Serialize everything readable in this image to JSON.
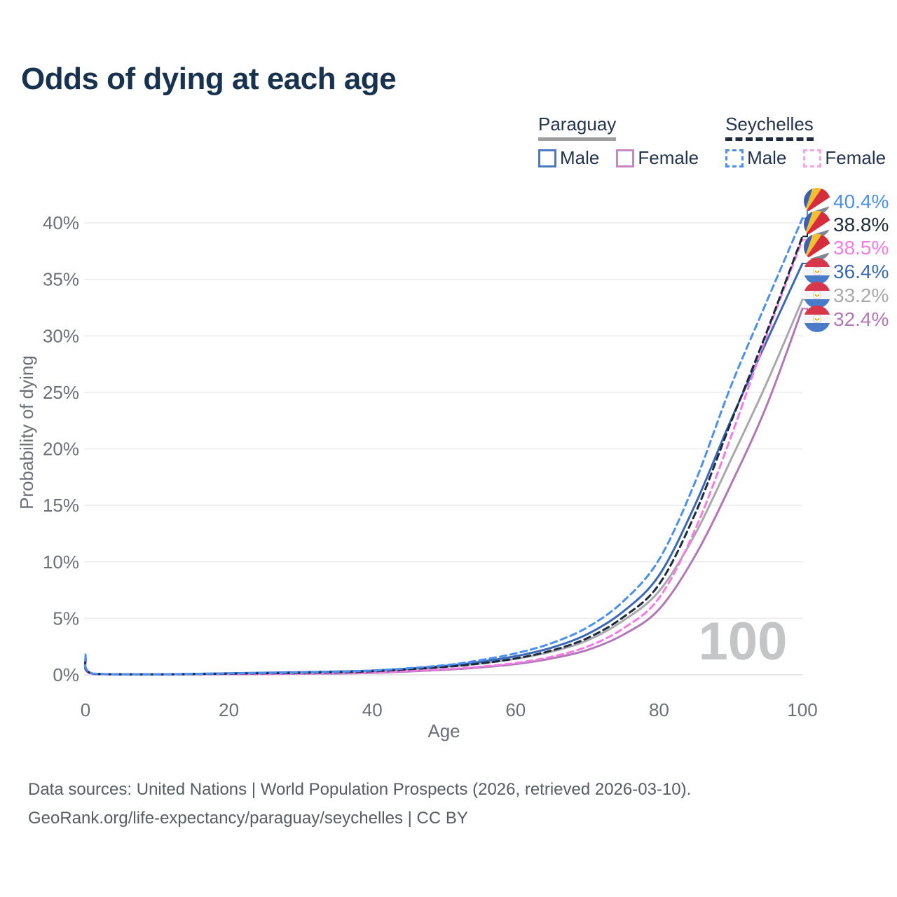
{
  "title": "Odds of dying at each age",
  "legend": {
    "groups": [
      {
        "name": "Paraguay",
        "underline_style": "solid",
        "underline_color": "#9e9e9e",
        "items": [
          {
            "label": "Male",
            "color": "#4b79bd",
            "style": "solid"
          },
          {
            "label": "Female",
            "color": "#c489c6",
            "style": "solid"
          }
        ]
      },
      {
        "name": "Seychelles",
        "underline_style": "dashed",
        "underline_color": "#1e2b3c",
        "items": [
          {
            "label": "Male",
            "color": "#4a90f0",
            "style": "dashed"
          },
          {
            "label": "Female",
            "color": "#f9a4ec",
            "style": "dashed"
          }
        ]
      }
    ]
  },
  "chart_data": {
    "type": "line",
    "title": "Odds of dying at each age",
    "xlabel": "Age",
    "ylabel": "Probability of dying",
    "xlim": [
      0,
      100
    ],
    "ylim_percent": [
      0,
      42
    ],
    "x_ticks": [
      0,
      20,
      40,
      60,
      80,
      100
    ],
    "y_tick_values": [
      0,
      5,
      10,
      15,
      20,
      25,
      30,
      35,
      40
    ],
    "y_tick_labels": [
      "0%",
      "5%",
      "10%",
      "15%",
      "20%",
      "25%",
      "30%",
      "35%",
      "40%"
    ],
    "grid": true,
    "legend_position": "top-right",
    "watermark": "100",
    "ages": [
      0,
      1,
      10,
      20,
      30,
      40,
      50,
      55,
      60,
      65,
      70,
      75,
      80,
      85,
      90,
      95,
      100
    ],
    "series": [
      {
        "id": "seychelles-male",
        "country": "Seychelles",
        "sex": "Male",
        "style": "dashed",
        "color": "#4a90f0",
        "flag": "seychelles",
        "end_label": "40.4%",
        "label_color": "#4a90f0",
        "values_percent": [
          1.8,
          0.12,
          0.05,
          0.13,
          0.22,
          0.38,
          0.85,
          1.3,
          1.9,
          2.8,
          4.2,
          6.5,
          10.2,
          17.0,
          25.5,
          33.0,
          40.4
        ]
      },
      {
        "id": "seychelles-both",
        "country": "Seychelles",
        "sex": "Both",
        "style": "dashed",
        "color": "#1e2b3c",
        "flag": "seychelles",
        "end_label": "38.8%",
        "label_color": "#1e2b3c",
        "values_percent": [
          1.5,
          0.1,
          0.04,
          0.11,
          0.18,
          0.32,
          0.7,
          1.0,
          1.45,
          2.15,
          3.25,
          5.1,
          8.0,
          14.2,
          22.3,
          30.3,
          38.8
        ]
      },
      {
        "id": "seychelles-female",
        "country": "Seychelles",
        "sex": "Female",
        "style": "dashed",
        "color": "#f57ae8",
        "flag": "seychelles",
        "end_label": "38.5%",
        "label_color": "#f57ae8",
        "values_percent": [
          1.3,
          0.08,
          0.04,
          0.08,
          0.12,
          0.22,
          0.5,
          0.72,
          1.05,
          1.6,
          2.5,
          4.1,
          6.8,
          12.8,
          21.0,
          30.0,
          38.5
        ]
      },
      {
        "id": "paraguay-male",
        "country": "Paraguay",
        "sex": "Male",
        "style": "solid",
        "color": "#3a68b8",
        "flag": "paraguay",
        "end_label": "36.4%",
        "label_color": "#3a68b8",
        "values_percent": [
          1.6,
          0.11,
          0.05,
          0.14,
          0.24,
          0.38,
          0.78,
          1.15,
          1.65,
          2.4,
          3.6,
          5.6,
          8.8,
          15.0,
          22.5,
          29.5,
          36.4
        ]
      },
      {
        "id": "paraguay-both",
        "country": "Paraguay",
        "sex": "Both",
        "style": "solid",
        "color": "#a9a9ad",
        "flag": "paraguay",
        "end_label": "33.2%",
        "label_color": "#a9a9ad",
        "values_percent": [
          1.4,
          0.1,
          0.04,
          0.12,
          0.2,
          0.33,
          0.7,
          1.0,
          1.42,
          2.05,
          3.05,
          4.8,
          7.4,
          12.4,
          19.0,
          25.8,
          33.2
        ]
      },
      {
        "id": "paraguay-female",
        "country": "Paraguay",
        "sex": "Female",
        "style": "solid",
        "color": "#b277b6",
        "flag": "paraguay",
        "end_label": "32.4%",
        "label_color": "#b277b6",
        "values_percent": [
          1.2,
          0.08,
          0.04,
          0.06,
          0.1,
          0.18,
          0.45,
          0.65,
          0.95,
          1.45,
          2.2,
          3.55,
          5.8,
          10.5,
          16.8,
          23.8,
          32.4
        ]
      }
    ],
    "flag_colors": {
      "seychelles": [
        "#3e5fae",
        "#f2c02e",
        "#d62d3d",
        "#ffffff",
        "#80868d"
      ],
      "paraguay": {
        "top": "#d6374a",
        "middle": "#f4f5f7",
        "bottom": "#4a7bc9",
        "emblem_ring": "#cdd2d8",
        "emblem": "#e8b21a"
      }
    }
  },
  "footer": {
    "line1": "Data sources: United Nations | World Population Prospects (2026, retrieved 2026-03-10).",
    "line2": "GeoRank.org/life-expectancy/paraguay/seychelles | CC BY"
  }
}
